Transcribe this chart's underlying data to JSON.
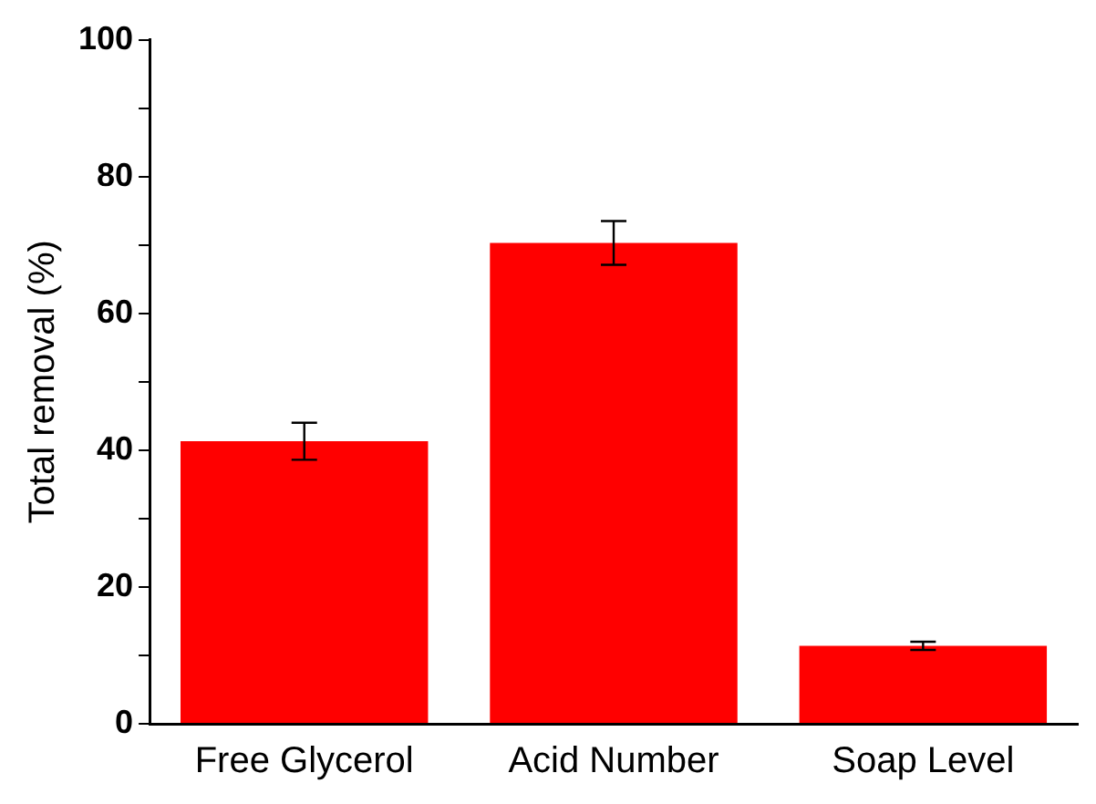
{
  "chart_data": {
    "type": "bar",
    "ylabel": "Total removal (%)",
    "categories": [
      "Free Glycerol",
      "Acid Number",
      "Soap Level"
    ],
    "values": [
      41.3,
      70.3,
      11.4
    ],
    "errors": [
      2.7,
      3.2,
      0.6
    ],
    "color": "#ff0000",
    "ylim": [
      0,
      100
    ],
    "yticks": [
      0,
      {
        "value": 10,
        "label": null
      },
      20,
      {
        "value": 30,
        "label": null
      },
      40,
      {
        "value": 50,
        "label": null
      },
      60,
      {
        "value": 70,
        "label": null
      },
      80,
      {
        "value": 90,
        "label": null
      },
      100
    ],
    "grid": false,
    "legend": false
  }
}
